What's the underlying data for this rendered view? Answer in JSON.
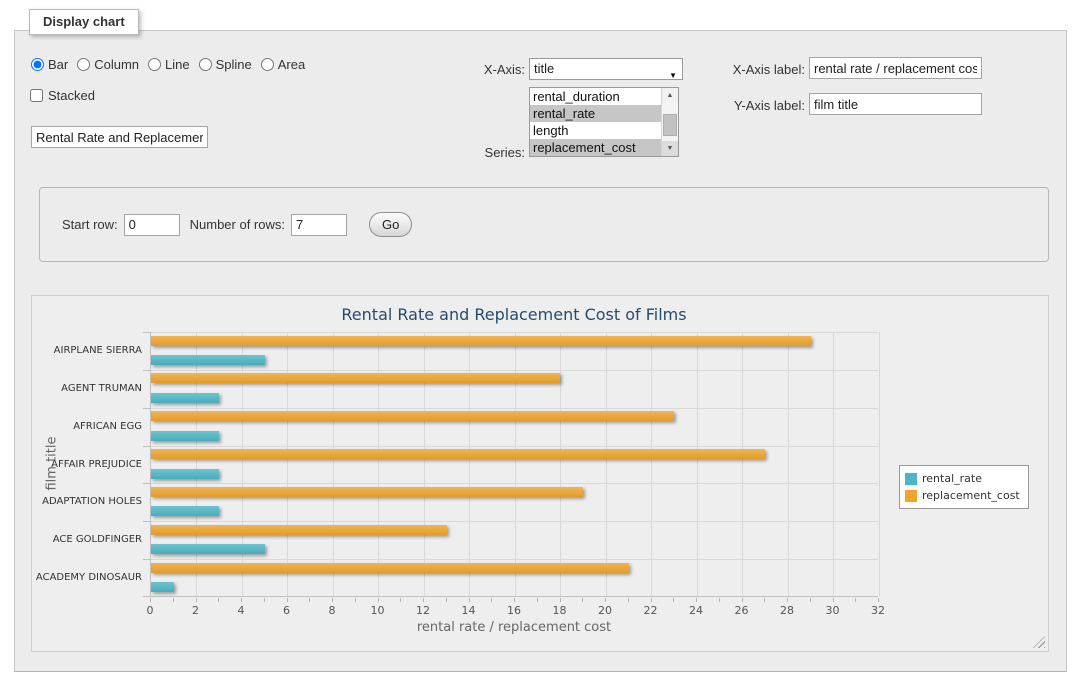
{
  "fieldset_legend": "Display chart",
  "chart_types": [
    {
      "label": "Bar",
      "checked": true
    },
    {
      "label": "Column",
      "checked": false
    },
    {
      "label": "Line",
      "checked": false
    },
    {
      "label": "Spline",
      "checked": false
    },
    {
      "label": "Area",
      "checked": false
    }
  ],
  "stacked": {
    "label": "Stacked",
    "checked": false
  },
  "title_input": {
    "value": "Rental Rate and Replacemer"
  },
  "x_axis": {
    "label": "X-Axis:",
    "value": "title"
  },
  "series_list": {
    "label": "Series:",
    "options": [
      {
        "label": "rental_duration",
        "selected": false
      },
      {
        "label": "rental_rate",
        "selected": true
      },
      {
        "label": "length",
        "selected": false
      },
      {
        "label": "replacement_cost",
        "selected": true
      }
    ]
  },
  "xlabel_field": {
    "label": "X-Axis label:",
    "value": "rental rate / replacement cost"
  },
  "ylabel_field": {
    "label": "Y-Axis label:",
    "value": "film title"
  },
  "row_panel": {
    "start_label": "Start row:",
    "start_value": "0",
    "rows_label": "Number of rows:",
    "rows_value": "7",
    "go_label": "Go"
  },
  "chart_data": {
    "type": "bar",
    "title": "Rental Rate and Replacement Cost of Films",
    "categories": [
      "AIRPLANE SIERRA",
      "AGENT TRUMAN",
      "AFRICAN EGG",
      "AFFAIR PREJUDICE",
      "ADAPTATION HOLES",
      "ACE GOLDFINGER",
      "ACADEMY DINOSAUR"
    ],
    "series": [
      {
        "name": "rental_rate",
        "color": "#4DB6C6",
        "values": [
          4.99,
          2.99,
          2.99,
          2.99,
          2.99,
          4.99,
          0.99
        ]
      },
      {
        "name": "replacement_cost",
        "color": "#EEA42D",
        "values": [
          28.99,
          17.99,
          22.99,
          26.99,
          18.99,
          12.99,
          20.99
        ]
      }
    ],
    "xlabel": "rental rate / replacement cost",
    "ylabel": "film title",
    "xlim": [
      0,
      32
    ],
    "tick_step": 2,
    "minor_tick_step": 1,
    "grid": true,
    "legend_position": "right",
    "background": "#eeeeee"
  }
}
